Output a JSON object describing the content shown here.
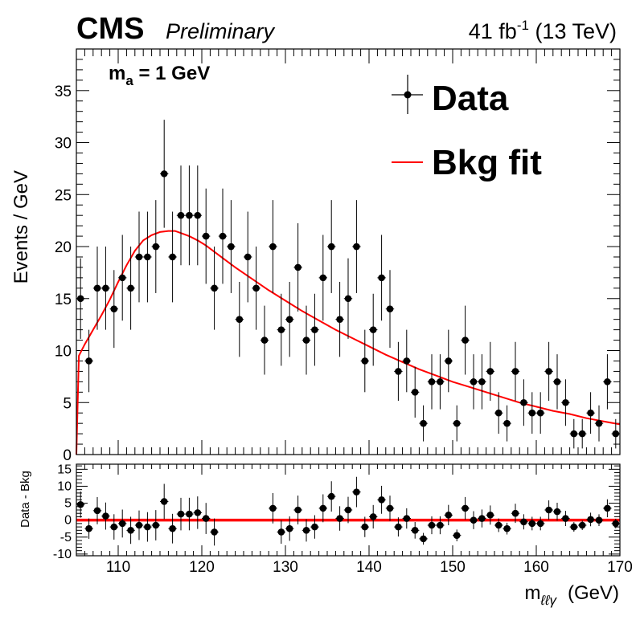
{
  "header": {
    "experiment": "CMS",
    "status": "Preliminary",
    "lumi_value": "41 fb",
    "lumi_exp": "-1",
    "energy": " (13 TeV)"
  },
  "annotation": {
    "mass_label_main": "m",
    "mass_label_sub": "a",
    "mass_label_rest": " = 1 GeV"
  },
  "legend": {
    "data_label": "Data",
    "fit_label": "Bkg fit"
  },
  "axes": {
    "ylabel_main": "Events / GeV",
    "ylabel_ratio": "Data - Bkg",
    "xlabel_main": "m",
    "xlabel_sub": "ℓℓγ",
    "xlabel_unit": "(GeV)"
  },
  "colors": {
    "data": "#000000",
    "fit": "#ff0000",
    "frame": "#000000"
  },
  "chart_data": [
    {
      "type": "scatter",
      "title": "",
      "xlabel": "m_ℓℓγ (GeV)",
      "ylabel": "Events / GeV",
      "xlim": [
        105,
        170
      ],
      "ylim": [
        0,
        39
      ],
      "xticks": [
        110,
        120,
        130,
        140,
        150,
        160,
        170
      ],
      "yticks": [
        0,
        5,
        10,
        15,
        20,
        25,
        30,
        35
      ],
      "legend_position": "top-right",
      "series": [
        {
          "name": "Data",
          "x": [
            105.5,
            106.5,
            107.5,
            108.5,
            109.5,
            110.5,
            111.5,
            112.5,
            113.5,
            114.5,
            115.5,
            116.5,
            117.5,
            118.5,
            119.5,
            120.5,
            121.5,
            122.5,
            123.5,
            124.5,
            125.5,
            126.5,
            127.5,
            128.5,
            129.5,
            130.5,
            131.5,
            132.5,
            133.5,
            134.5,
            135.5,
            136.5,
            137.5,
            138.5,
            139.5,
            140.5,
            141.5,
            142.5,
            143.5,
            144.5,
            145.5,
            146.5,
            147.5,
            148.5,
            149.5,
            150.5,
            151.5,
            152.5,
            153.5,
            154.5,
            155.5,
            156.5,
            157.5,
            158.5,
            159.5,
            160.5,
            161.5,
            162.5,
            163.5,
            164.5,
            165.5,
            166.5,
            167.5,
            168.5,
            169.5
          ],
          "y": [
            15,
            9,
            16,
            16,
            14,
            17,
            16,
            19,
            19,
            20,
            27,
            19,
            23,
            23,
            23,
            21,
            16,
            21,
            20,
            13,
            19,
            16,
            11,
            20,
            12,
            13,
            18,
            11,
            12,
            17,
            20,
            13,
            15,
            20,
            9,
            12,
            17,
            14,
            8,
            9,
            6,
            3,
            7,
            7,
            9,
            3,
            11,
            7,
            7,
            8,
            4,
            3,
            8,
            5,
            4,
            4,
            8,
            7,
            5,
            2,
            2,
            4,
            3,
            7,
            2
          ]
        },
        {
          "name": "Bkg fit",
          "x": [
            105,
            105.3,
            106,
            107,
            108,
            109,
            110,
            111,
            112,
            113,
            114,
            115,
            116,
            116.8,
            117.5,
            118.5,
            119.5,
            120.5,
            122,
            124,
            126,
            128,
            130,
            132,
            134,
            136,
            138,
            140,
            142,
            144,
            146,
            148,
            150,
            152,
            154,
            156,
            158,
            160,
            162,
            164,
            166,
            168,
            170
          ],
          "y": [
            0,
            9.5,
            10.6,
            12.0,
            13.4,
            14.9,
            16.6,
            18.2,
            19.6,
            20.6,
            21.1,
            21.4,
            21.5,
            21.5,
            21.3,
            21.0,
            20.6,
            20.1,
            19.2,
            18.0,
            16.9,
            15.8,
            14.8,
            13.8,
            12.9,
            12.0,
            11.2,
            10.4,
            9.6,
            8.9,
            8.2,
            7.6,
            7.0,
            6.5,
            6.0,
            5.5,
            5.0,
            4.6,
            4.2,
            3.9,
            3.5,
            3.2,
            2.9
          ]
        }
      ]
    },
    {
      "type": "scatter",
      "title": "",
      "xlabel": "m_ℓℓγ (GeV)",
      "ylabel": "Data - Bkg",
      "xlim": [
        105,
        170
      ],
      "ylim": [
        -10.5,
        16.5
      ],
      "xticks": [
        110,
        120,
        130,
        140,
        150,
        160,
        170
      ],
      "yticks": [
        -10,
        -5,
        0,
        5,
        10,
        15
      ],
      "series": [
        {
          "name": "Data",
          "x": [
            105.5,
            106.5,
            107.5,
            108.5,
            109.5,
            110.5,
            111.5,
            112.5,
            113.5,
            114.5,
            115.5,
            116.5,
            117.5,
            118.5,
            119.5,
            120.5,
            121.5,
            128.5,
            129.5,
            130.5,
            131.5,
            132.5,
            133.5,
            134.5,
            135.5,
            136.5,
            137.5,
            138.5,
            139.5,
            140.5,
            141.5,
            142.5,
            143.5,
            144.5,
            145.5,
            146.5,
            147.5,
            148.5,
            149.5,
            150.5,
            151.5,
            152.5,
            153.5,
            154.5,
            155.5,
            156.5,
            157.5,
            158.5,
            159.5,
            160.5,
            161.5,
            162.5,
            163.5,
            164.5,
            165.5,
            166.5,
            167.5,
            168.5,
            169.5
          ],
          "y": [
            4.6,
            -2.5,
            2.8,
            1.2,
            -2.0,
            -1.0,
            -3.0,
            -1.5,
            -2.0,
            -1.5,
            5.5,
            -2.5,
            1.8,
            1.8,
            2.2,
            0.5,
            -3.5,
            3.5,
            -3.5,
            -2.5,
            3.0,
            -3.0,
            -2.0,
            3.5,
            7.0,
            0.5,
            3.0,
            8.3,
            -2.0,
            1.0,
            6.0,
            3.5,
            -2.0,
            0.5,
            -3.0,
            -5.5,
            -1.5,
            -1.5,
            1.5,
            -4.5,
            3.5,
            0,
            0.5,
            1.5,
            -1.5,
            -2.5,
            2.0,
            -0.5,
            -1.0,
            -1.0,
            3.0,
            2.5,
            0.5,
            -2.0,
            -1.5,
            0.2,
            0,
            3.5,
            -1.0
          ]
        },
        {
          "name": "Bkg fit",
          "x": [
            105,
            170
          ],
          "y": [
            0,
            0
          ]
        }
      ]
    }
  ]
}
